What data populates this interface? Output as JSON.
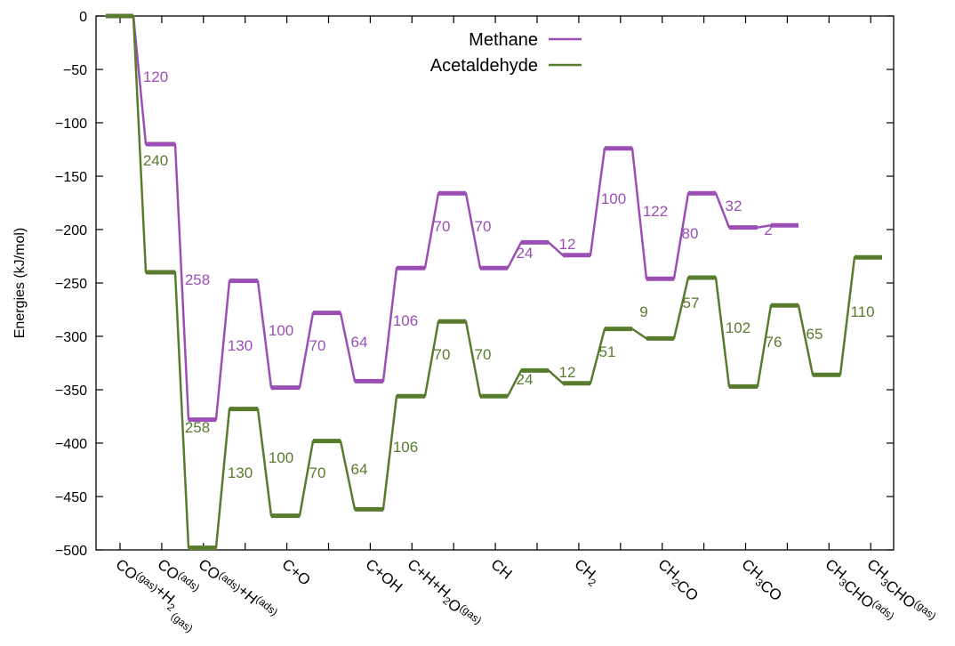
{
  "chart_data": {
    "type": "line",
    "ylabel": "Energies (kJ/mol)",
    "ylim": [
      -500,
      0
    ],
    "y_ticks": [
      0,
      -50,
      -100,
      -150,
      -200,
      -250,
      -300,
      -350,
      -400,
      -450,
      -500
    ],
    "x_categories": [
      {
        "id": "co-gas-h2-gas",
        "parts": [
          [
            "CO",
            ""
          ],
          [
            "(gas)",
            "sup"
          ],
          [
            "+H",
            ""
          ],
          [
            "2",
            "sub"
          ],
          [
            " (gas)",
            "sub"
          ]
        ]
      },
      {
        "id": "co-ads",
        "parts": [
          [
            "CO",
            ""
          ],
          [
            "(ads)",
            "sup"
          ]
        ]
      },
      {
        "id": "co-ads-h-ads",
        "parts": [
          [
            "CO",
            ""
          ],
          [
            "(ads)",
            "sup"
          ],
          [
            "+H",
            ""
          ],
          [
            "(ads)",
            "sup"
          ]
        ]
      },
      {
        "id": "c-o",
        "parts": [
          [
            "C+O",
            ""
          ]
        ]
      },
      {
        "id": "c-oh",
        "parts": [
          [
            "C+OH",
            ""
          ]
        ]
      },
      {
        "id": "c-h-h2o",
        "parts": [
          [
            "C+H+H",
            ""
          ],
          [
            "2",
            "sub"
          ],
          [
            "O",
            ""
          ],
          [
            "(gas)",
            "sup"
          ]
        ]
      },
      {
        "id": "ch",
        "parts": [
          [
            "CH",
            ""
          ]
        ]
      },
      {
        "id": "ch2",
        "parts": [
          [
            "CH",
            ""
          ],
          [
            "2",
            "sub"
          ]
        ]
      },
      {
        "id": "ch2co",
        "parts": [
          [
            "CH",
            ""
          ],
          [
            "2",
            "sub"
          ],
          [
            "CO",
            ""
          ]
        ]
      },
      {
        "id": "ch3co",
        "parts": [
          [
            "CH",
            ""
          ],
          [
            "3",
            "sub"
          ],
          [
            "CO",
            ""
          ]
        ]
      },
      {
        "id": "ch3cho-ads",
        "parts": [
          [
            "CH",
            ""
          ],
          [
            "3",
            "sub"
          ],
          [
            "CHO",
            ""
          ],
          [
            "(ads)",
            "sup"
          ]
        ]
      },
      {
        "id": "ch3cho-gas",
        "parts": [
          [
            "CH",
            ""
          ],
          [
            "3",
            "sub"
          ],
          [
            "CHO",
            ""
          ],
          [
            "(gas)",
            "sup"
          ]
        ]
      }
    ],
    "series": [
      {
        "name": "Methane",
        "color": "#9b4fb5",
        "levels": [
          0,
          -120,
          -378,
          -248,
          -348,
          -278,
          -342,
          -236,
          -166,
          -236,
          -212,
          -224,
          -124,
          -246,
          -166,
          -198,
          -196
        ],
        "barriers": [
          "120",
          "258",
          "130",
          "100",
          "70",
          "64",
          "106",
          "70",
          "70",
          "24",
          "12",
          "100",
          "122",
          "80",
          "32",
          "2"
        ]
      },
      {
        "name": "Acetaldehyde",
        "color": "#587b2e",
        "levels": [
          0,
          -240,
          -498,
          -368,
          -468,
          -398,
          -462,
          -356,
          -286,
          -356,
          -332,
          -344,
          -293,
          -302,
          -245,
          -347,
          -271,
          -336,
          -226
        ],
        "barriers": [
          "240",
          "258",
          "130",
          "100",
          "70",
          "64",
          "106",
          "70",
          "70",
          "24",
          "12",
          "51",
          "9",
          "57",
          "102",
          "76",
          "65",
          "110"
        ]
      }
    ],
    "legend_position": "top-center"
  }
}
